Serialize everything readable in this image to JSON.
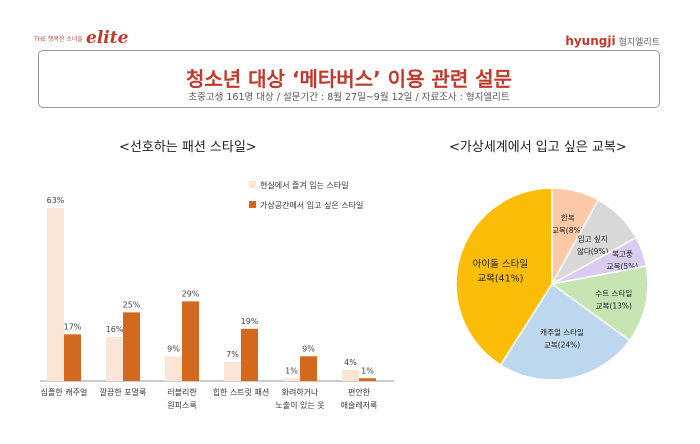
{
  "header": {
    "left_logo_small": "THE 행복한 소녀들",
    "left_logo": "elite",
    "right_logo_brand": "hyungji",
    "right_logo_korean": "형지엘리트",
    "title": "청소년 대상 ‘메타버스’ 이용 관련 설문",
    "subtitle": "초중고생 161명 대상 / 설문기간 : 8월 27일~9월 12일 / 자료조사 : 형지엘리트"
  },
  "colors": {
    "bar_series1": "#fbe5d6",
    "bar_series2": "#d2691e",
    "pie": [
      "#fbc8a8",
      "#d9d9d9",
      "#d9ccf0",
      "#c6e5b3",
      "#bdd7ee",
      "#fbbd08"
    ]
  },
  "chart_data": [
    {
      "type": "bar",
      "title": "<선호하는 패션 스타일>",
      "categories": [
        [
          "심플한 캐주얼"
        ],
        [
          "깔끔한 포멀룩"
        ],
        [
          "러블리한",
          "원피스룩"
        ],
        [
          "힙한 스트릿 패션"
        ],
        [
          "화려하거나",
          "노출이 있는 옷"
        ],
        [
          "편안한",
          "애슬레저룩"
        ]
      ],
      "series": [
        {
          "name": "현실에서 즐겨 입는 스타일",
          "values": [
            63,
            16,
            9,
            7,
            1,
            4
          ],
          "labels": [
            "63%",
            "16%",
            "9%",
            "7%",
            "1%",
            "4%"
          ]
        },
        {
          "name": "가상공간에서 입고 싶은 스타일",
          "values": [
            17,
            25,
            29,
            19,
            9,
            1
          ],
          "labels": [
            "17%",
            "25%",
            "29%",
            "19%",
            "9%",
            "1%"
          ]
        }
      ],
      "ylim": [
        0,
        63
      ],
      "grid": false,
      "legend": "top-right"
    },
    {
      "type": "pie",
      "title": "<가상세계에서 입고 싶은 교복>",
      "slices": [
        {
          "name": "한복 교복",
          "value": 8,
          "label": "(8%)"
        },
        {
          "name": "입고 싶지 않다",
          "value": 9,
          "label": "(9%)"
        },
        {
          "name": "복고풍 교복",
          "value": 5,
          "label": "(5%)"
        },
        {
          "name": "수트 스타일 교복",
          "value": 13,
          "label": "(13%)"
        },
        {
          "name": "캐주얼 스타일 교복",
          "value": 24,
          "label": "(24%)"
        },
        {
          "name": "아이돌 스타일 교복",
          "value": 41,
          "label": "(41%)"
        }
      ],
      "start": "top",
      "direction": "clockwise"
    }
  ]
}
